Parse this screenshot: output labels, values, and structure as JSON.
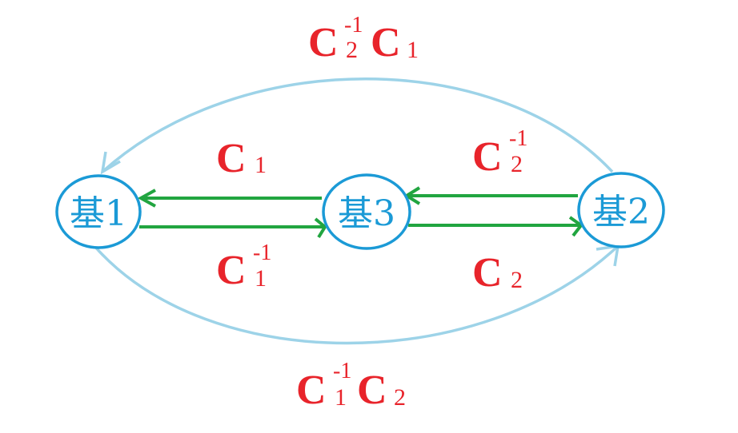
{
  "nodes": {
    "base1": "基1",
    "base3": "基3",
    "base2": "基2"
  },
  "labels": {
    "top_arc": {
      "m1": "C",
      "sub1": "2",
      "sup1": "-1",
      "m2": "C",
      "sub2": "1"
    },
    "c1_upper": {
      "m": "C",
      "sub": "1"
    },
    "c2inv_upper": {
      "m": "C",
      "sub": "2",
      "sup": "-1"
    },
    "c1inv_lower": {
      "m": "C",
      "sub": "1",
      "sup": "-1"
    },
    "c2_lower": {
      "m": "C",
      "sub": "2"
    },
    "bottom_arc": {
      "m1": "C",
      "sub1": "1",
      "sup1": "-1",
      "m2": "C",
      "sub2": "2"
    }
  },
  "colors": {
    "node": "#1b9ad6",
    "green_arrow": "#21a540",
    "blue_arc": "#9dd3e8",
    "label": "#e8242b"
  }
}
